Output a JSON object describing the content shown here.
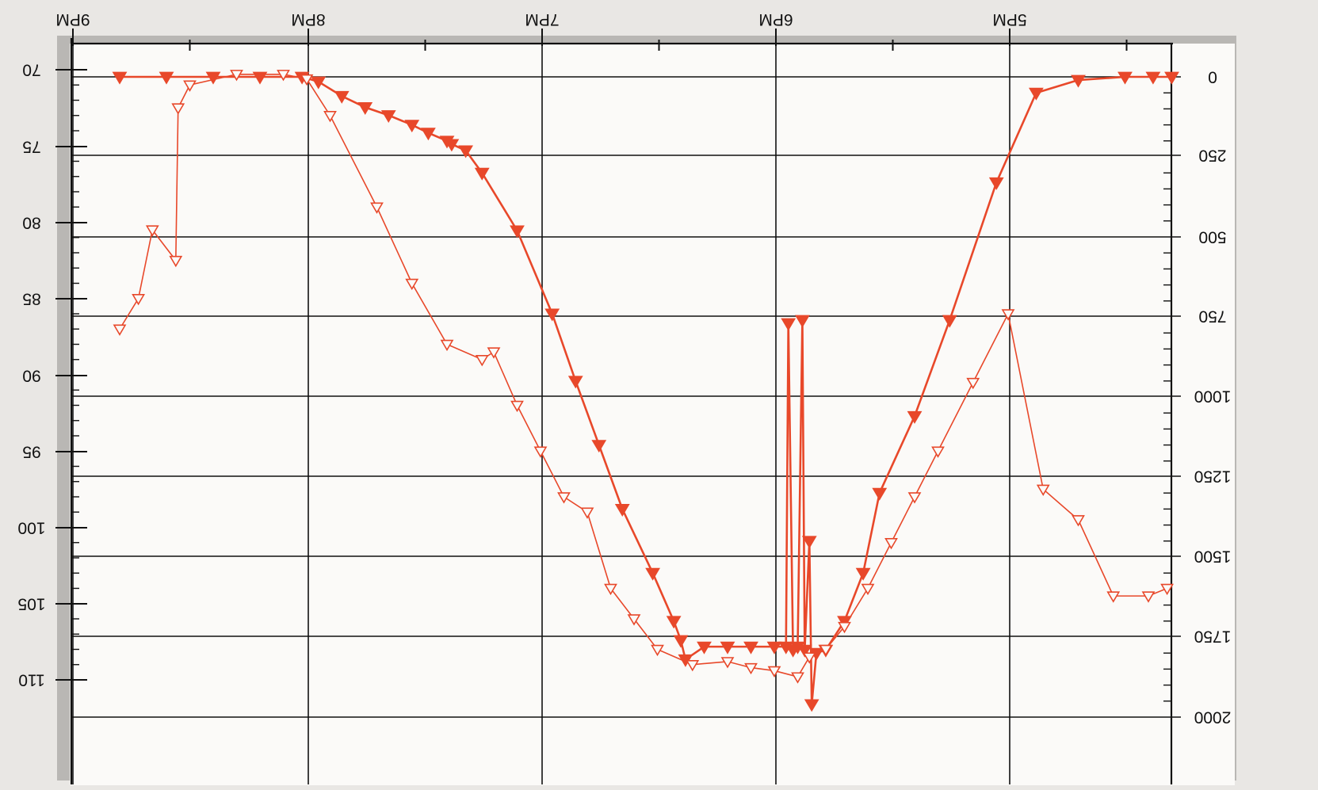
{
  "chart_data": {
    "type": "line",
    "orientation": "rotated-180",
    "grid": true,
    "legend": "none",
    "x_axis": {
      "tick_labels": [
        "9PM",
        "8PM",
        "7PM",
        "6PM",
        "5PM"
      ],
      "range_hours": [
        21,
        16.3
      ]
    },
    "y_left": {
      "tick_labels": [
        "70",
        "75",
        "80",
        "85",
        "90",
        "95",
        "100",
        "105",
        "110"
      ],
      "range": [
        70,
        110
      ]
    },
    "y_right": {
      "tick_labels": [
        "0",
        "250",
        "500",
        "750",
        "1000",
        "1250",
        "1500",
        "1750",
        "2000"
      ],
      "range": [
        0,
        2000
      ]
    },
    "series": [
      {
        "marker": "filled-triangle",
        "color": "#e8482a",
        "axis": "right",
        "points": [
          [
            20.8,
            0
          ],
          [
            20.6,
            0
          ],
          [
            20.4,
            0
          ],
          [
            20.2,
            0
          ],
          [
            20.02,
            0
          ],
          [
            19.95,
            15
          ],
          [
            19.85,
            60
          ],
          [
            19.75,
            95
          ],
          [
            19.65,
            120
          ],
          [
            19.55,
            150
          ],
          [
            19.48,
            175
          ],
          [
            19.4,
            200
          ],
          [
            19.38,
            210
          ],
          [
            19.32,
            230
          ],
          [
            19.25,
            300
          ],
          [
            19.1,
            480
          ],
          [
            18.95,
            740
          ],
          [
            18.85,
            950
          ],
          [
            18.75,
            1150
          ],
          [
            18.65,
            1350
          ],
          [
            18.52,
            1550
          ],
          [
            18.43,
            1700
          ],
          [
            18.4,
            1760
          ],
          [
            18.38,
            1820
          ],
          [
            18.3,
            1780
          ],
          [
            18.2,
            1780
          ],
          [
            18.1,
            1780
          ],
          [
            18.0,
            1780
          ],
          [
            17.95,
            1780
          ],
          [
            17.94,
            770
          ],
          [
            17.92,
            1790
          ],
          [
            17.9,
            1780
          ],
          [
            17.88,
            760
          ],
          [
            17.87,
            1790
          ],
          [
            17.85,
            1450
          ],
          [
            17.84,
            1960
          ],
          [
            17.82,
            1800
          ],
          [
            17.78,
            1790
          ],
          [
            17.7,
            1700
          ],
          [
            17.62,
            1550
          ],
          [
            17.55,
            1300
          ],
          [
            17.4,
            1060
          ],
          [
            17.25,
            760
          ],
          [
            17.05,
            330
          ],
          [
            16.88,
            50
          ],
          [
            16.7,
            10
          ],
          [
            16.5,
            0
          ],
          [
            16.38,
            0
          ],
          [
            16.3,
            0
          ]
        ]
      },
      {
        "marker": "open-triangle",
        "color": "#e8482a",
        "axis": "left",
        "points": [
          [
            20.8,
            87.0
          ],
          [
            20.72,
            85.0
          ],
          [
            20.66,
            80.5
          ],
          [
            20.56,
            82.5
          ],
          [
            20.55,
            72.5
          ],
          [
            20.5,
            71.0
          ],
          [
            20.3,
            70.3
          ],
          [
            20.1,
            70.3
          ],
          [
            20.0,
            70.6
          ],
          [
            19.9,
            73.0
          ],
          [
            19.7,
            79.0
          ],
          [
            19.55,
            84.0
          ],
          [
            19.4,
            88.0
          ],
          [
            19.25,
            89.0
          ],
          [
            19.2,
            88.5
          ],
          [
            19.1,
            92.0
          ],
          [
            19.0,
            95.0
          ],
          [
            18.9,
            98.0
          ],
          [
            18.8,
            99.0
          ],
          [
            18.7,
            104.0
          ],
          [
            18.6,
            106.0
          ],
          [
            18.5,
            108.0
          ],
          [
            18.35,
            109.0
          ],
          [
            18.2,
            108.8
          ],
          [
            18.1,
            109.2
          ],
          [
            18.0,
            109.4
          ],
          [
            17.9,
            109.8
          ],
          [
            17.85,
            108.5
          ],
          [
            17.78,
            108.0
          ],
          [
            17.7,
            106.5
          ],
          [
            17.6,
            104.0
          ],
          [
            17.5,
            101.0
          ],
          [
            17.4,
            98.0
          ],
          [
            17.3,
            95.0
          ],
          [
            17.15,
            90.5
          ],
          [
            17.0,
            86.0
          ],
          [
            16.85,
            97.5
          ],
          [
            16.7,
            99.5
          ],
          [
            16.55,
            104.5
          ],
          [
            16.4,
            104.5
          ],
          [
            16.32,
            104.0
          ]
        ]
      }
    ]
  }
}
